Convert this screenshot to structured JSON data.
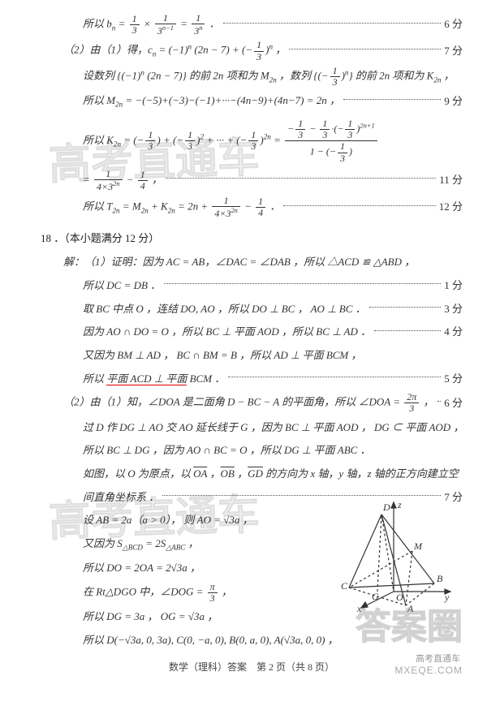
{
  "lines": {
    "l1": {
      "text": "所以 b<sub>n</sub> = <span class='frac'><span class='num'>1</span><span class='den'>3</span></span> × <span class='frac'><span class='num'>1</span><span class='den'>3<sup>n−1</sup></span></span> = <span class='frac'><span class='num'>1</span><span class='den'>3<sup>n</sup></span></span> ．",
      "score": "6 分"
    },
    "l2": {
      "text": "（2）由（1）得，c<sub>n</sub> = (−1)<sup>n</sup> (2n − 7) + (−<span class='frac'><span class='num'>1</span><span class='den'>3</span></span>)<sup>n</sup> ，",
      "score": "7 分"
    },
    "l3": {
      "text": "设数列 {(−1)<sup>n</sup> (2n − 7)} 的前 2n 项和为 M<sub>2n</sub> ，数列 {(−<span class='frac'><span class='num'>1</span><span class='den'>3</span></span>)<sup>n</sup>} 的前 2n 项和为 K<sub>2n</sub> ，"
    },
    "l4": {
      "text": "所以 M<sub>2n</sub> = −(−5)+(−3)−(−1)+···−(4n−9)+(4n−7) = 2n ，",
      "score": "9 分"
    },
    "l5": {
      "text": "所以 K<sub>2n</sub> = (−<span class='frac'><span class='num'>1</span><span class='den'>3</span></span>) + (−<span class='frac'><span class='num'>1</span><span class='den'>3</span></span>)<sup>2</sup> + ··· + (−<span class='frac'><span class='num'>1</span><span class='den'>3</span></span>)<sup>2n</sup> = <span class='frac'><span class='num'>−<span class='frac'><span class='num'>1</span><span class='den'>3</span></span> − <span class='frac'><span class='num'>1</span><span class='den'>3</span></span>·(−<span class='frac'><span class='num'>1</span><span class='den'>3</span></span>)<sup>2n+1</sup></span><span class='den'>1 − (−<span class='frac'><span class='num'>1</span><span class='den'>3</span></span>)</span></span>"
    },
    "l6": {
      "text": "= <span class='frac'><span class='num'>1</span><span class='den'>4×3<sup>2n</sup></span></span> − <span class='frac'><span class='num'>1</span><span class='den'>4</span></span> ，",
      "score": "11 分"
    },
    "l7": {
      "text": "所以 T<sub>2n</sub> = M<sub>2n</sub> + K<sub>2n</sub> = 2n + <span class='frac'><span class='num'>1</span><span class='den'>4×3<sup>2n</sup></span></span> − <span class='frac'><span class='num'>1</span><span class='den'>4</span></span> ．",
      "score": "12 分"
    },
    "q18": "18 ．（本小题满分 12 分）",
    "l8": {
      "text": "解：（1）证明：因为 AC = AB，∠DAC = ∠DAB ，所以 △ACD ≌ △ABD ，"
    },
    "l9": {
      "text": "所以 DC = DB ．",
      "score": "1 分"
    },
    "l10": {
      "text": "取 BC 中点 O ，连结 DO, AO ，所以 DO ⊥ BC ， AO ⊥ BC ．",
      "score": "3 分"
    },
    "l11": {
      "text": "因为 AO ∩ DO = O ，所以 BC ⊥ 平面 AOD ，所以 BC ⊥ AD ．",
      "score": "4 分"
    },
    "l12": {
      "text": "又因为 BM ⊥ AD ， BC ∩ BM = B ，所以 AD ⊥ 平面 BCM ，"
    },
    "l13": {
      "text": "所以 <span class='underline-red'>平面 ACD ⊥ 平面</span> BCM ．",
      "score": "5 分"
    },
    "l14": {
      "text": "（2）由（1）知，∠DOA 是二面角 D − BC − A 的平面角，所以 ∠DOA = <span class='frac'><span class='num'>2π</span><span class='den'>3</span></span> ，",
      "score": "6 分"
    },
    "l15": {
      "text": "过 D 作 DG ⊥ AO 交 AO 延长线于 G ，因为 BC ⊥ 平面 AOD ， DG ⊂ 平面 AOD ，"
    },
    "l16": {
      "text": "所以 BC ⊥ DG ，因为 AO ∩ BC = O ，所以 DG ⊥ 平面 ABC ．"
    },
    "l17": {
      "text": "如图，以 O 为原点，以 <span style='text-decoration:overline'>OA</span> ，<span style='text-decoration:overline'>OB</span> ，<span style='text-decoration:overline'>GD</span> 的方向为 x 轴，y 轴，z 轴的正方向建立空"
    },
    "l18": {
      "text": "间直角坐标系 ．",
      "score": "7 分"
    },
    "l19": {
      "text": "设 AB = 2a（a > 0）， 则 AO = √3a ，"
    },
    "l20": {
      "text": "又因为 S<sub>△BCD</sub> = 2S<sub>△ABC</sub> ，"
    },
    "l21": {
      "text": "所以 DO = 2OA = 2√3a ，"
    },
    "l22": {
      "text": "在 Rt△DGO 中，∠DOG = <span class='frac'><span class='num'>π</span><span class='den'>3</span></span> ，"
    },
    "l23": {
      "text": "所以 DG = 3a ， OG = √3a ，"
    },
    "l24": {
      "text": "所以 D(−√3a, 0, 3a), C(0, −a, 0), B(0, a, 0), A(√3a, 0, 0) ，"
    }
  },
  "footer": "数学（理科）答案　第 2 页（共 8 页）",
  "watermarks": {
    "wm_text": "高考直通车",
    "daan": "答案圈",
    "gkztc": "高考直通车",
    "mxeqe": "MXEQE.COM"
  },
  "diagram": {
    "labels": {
      "D": "D",
      "B": "B",
      "C": "C",
      "A": "A",
      "M": "M",
      "G": "G",
      "O": "O",
      "x": "x",
      "y": "y",
      "z": "z"
    },
    "colors": {
      "stroke": "#333",
      "fill": "none"
    }
  }
}
